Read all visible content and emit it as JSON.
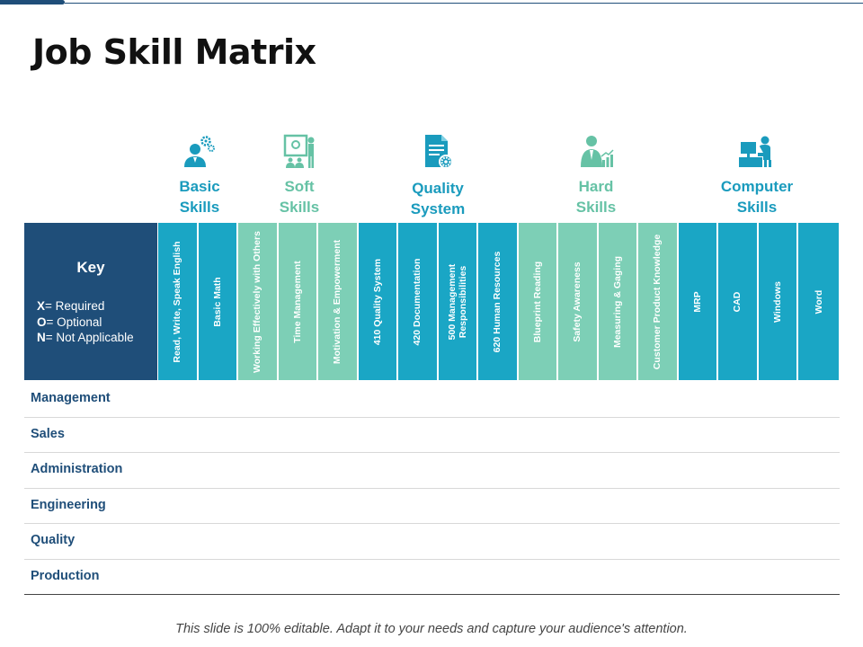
{
  "title": "Job Skill Matrix",
  "colors": {
    "navy": "#1f4e79",
    "teal": "#1aa6c5",
    "mint": "#7dcfb6",
    "mint_text": "#66c2a5",
    "teal_text": "#1a9bbd"
  },
  "categories": [
    {
      "line1": "Basic",
      "line2": "Skills",
      "icon": "person-gears-icon"
    },
    {
      "line1": "Soft",
      "line2": "Skills",
      "icon": "presentation-icon"
    },
    {
      "line1": "Quality",
      "line2": "System",
      "icon": "document-gear-icon"
    },
    {
      "line1": "Hard",
      "line2": "Skills",
      "icon": "worker-chart-icon"
    },
    {
      "line1": "Computer",
      "line2": "Skills",
      "icon": "computer-user-icon"
    }
  ],
  "key": {
    "title": "Key",
    "lines": [
      {
        "code": "X",
        "text": "= Required"
      },
      {
        "code": "O",
        "text": "= Optional"
      },
      {
        "code": "N",
        "text": "= Not Applicable"
      }
    ]
  },
  "columns": [
    {
      "label": "Read, Write, Speak English",
      "group": 0
    },
    {
      "label": "Basic Math",
      "group": 0
    },
    {
      "label": "Working Effectively with Others",
      "group": 1
    },
    {
      "label": "Time Management",
      "group": 1
    },
    {
      "label": "Motivation & Empowerment",
      "group": 1
    },
    {
      "label": "410 Quality System",
      "group": 2
    },
    {
      "label": "420 Documentation",
      "group": 2
    },
    {
      "label": "500 Management Responsibilities",
      "group": 2
    },
    {
      "label": "620 Human Resources",
      "group": 2
    },
    {
      "label": "Blueprint Reading",
      "group": 3
    },
    {
      "label": "Safety Awareness",
      "group": 3
    },
    {
      "label": "Measuring & Gaging",
      "group": 3
    },
    {
      "label": "Customer Product Knowledge",
      "group": 3
    },
    {
      "label": "MRP",
      "group": 4
    },
    {
      "label": "CAD",
      "group": 4
    },
    {
      "label": "Windows",
      "group": 4
    },
    {
      "label": "Word",
      "group": 4
    }
  ],
  "rows": [
    "Management",
    "Sales",
    "Administration",
    "Engineering",
    "Quality",
    "Production"
  ],
  "footer": "This slide is 100% editable. Adapt it to your needs and capture your audience's attention."
}
